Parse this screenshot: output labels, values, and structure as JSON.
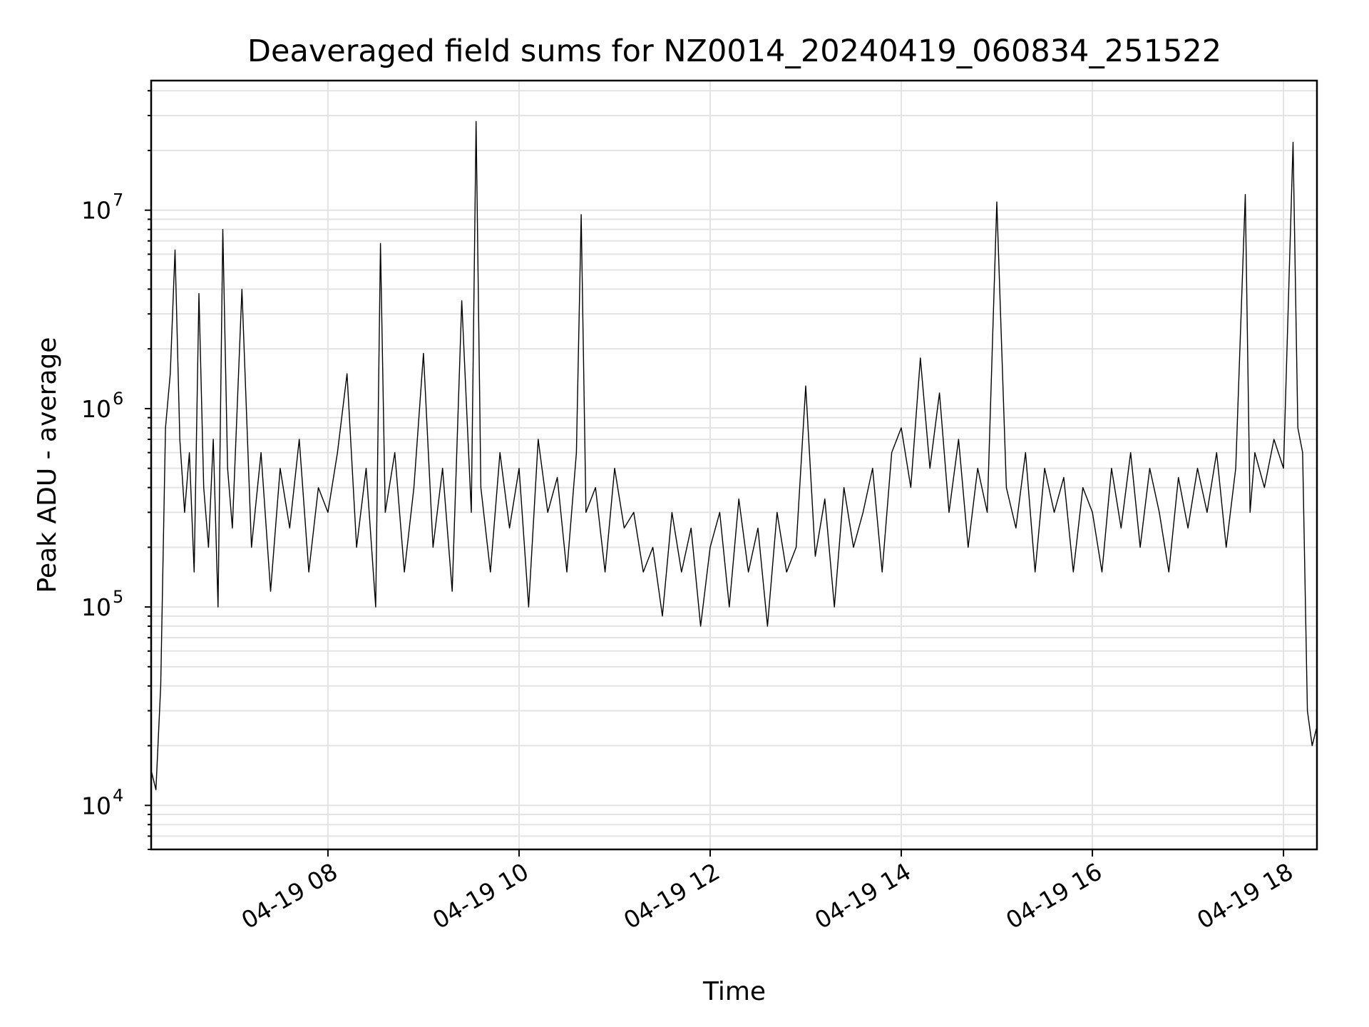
{
  "chart_data": {
    "type": "line",
    "title": "Deaveraged field sums for NZ0014_20240419_060834_251522",
    "xlabel": "Time",
    "ylabel": "Peak ADU - average",
    "yscale": "log",
    "grid": true,
    "x_tick_labels": [
      "04-19 08",
      "04-19 10",
      "04-19 12",
      "04-19 14",
      "04-19 16",
      "04-19 18"
    ],
    "x_ticks_hours": [
      8,
      10,
      12,
      14,
      16,
      18
    ],
    "xlim_hours": [
      6.15,
      18.35
    ],
    "y_ticks": [
      {
        "base": "10",
        "exp": "4",
        "value": 10000
      },
      {
        "base": "10",
        "exp": "5",
        "value": 100000
      },
      {
        "base": "10",
        "exp": "6",
        "value": 1000000
      },
      {
        "base": "10",
        "exp": "7",
        "value": 10000000
      }
    ],
    "ylim": [
      6000,
      45000000
    ],
    "series": [
      {
        "color": "#000000",
        "x_hours": [
          6.15,
          6.2,
          6.25,
          6.3,
          6.35,
          6.4,
          6.45,
          6.5,
          6.55,
          6.6,
          6.65,
          6.7,
          6.75,
          6.8,
          6.85,
          6.9,
          6.95,
          7.0,
          7.1,
          7.2,
          7.3,
          7.4,
          7.5,
          7.6,
          7.7,
          7.8,
          7.9,
          8.0,
          8.1,
          8.2,
          8.3,
          8.4,
          8.5,
          8.55,
          8.6,
          8.7,
          8.8,
          8.9,
          9.0,
          9.1,
          9.2,
          9.3,
          9.4,
          9.5,
          9.55,
          9.6,
          9.7,
          9.8,
          9.9,
          10.0,
          10.1,
          10.2,
          10.3,
          10.4,
          10.5,
          10.6,
          10.65,
          10.7,
          10.8,
          10.9,
          11.0,
          11.1,
          11.2,
          11.3,
          11.4,
          11.5,
          11.6,
          11.7,
          11.8,
          11.9,
          12.0,
          12.1,
          12.2,
          12.3,
          12.4,
          12.5,
          12.6,
          12.7,
          12.8,
          12.9,
          13.0,
          13.1,
          13.2,
          13.3,
          13.4,
          13.5,
          13.6,
          13.7,
          13.8,
          13.9,
          14.0,
          14.1,
          14.2,
          14.3,
          14.4,
          14.5,
          14.6,
          14.7,
          14.8,
          14.9,
          15.0,
          15.1,
          15.2,
          15.3,
          15.4,
          15.5,
          15.6,
          15.7,
          15.8,
          15.9,
          16.0,
          16.1,
          16.2,
          16.3,
          16.4,
          16.5,
          16.6,
          16.7,
          16.8,
          16.9,
          17.0,
          17.1,
          17.2,
          17.3,
          17.4,
          17.5,
          17.6,
          17.65,
          17.7,
          17.8,
          17.9,
          18.0,
          18.1,
          18.15,
          18.2,
          18.25,
          18.3,
          18.35
        ],
        "values": [
          15000,
          12000,
          40000,
          800000,
          1500000,
          6300000,
          700000,
          300000,
          600000,
          150000,
          3800000,
          400000,
          200000,
          700000,
          100000,
          8000000,
          500000,
          250000,
          4000000,
          200000,
          600000,
          120000,
          500000,
          250000,
          700000,
          150000,
          400000,
          300000,
          600000,
          1500000,
          200000,
          500000,
          100000,
          6800000,
          300000,
          600000,
          150000,
          400000,
          1900000,
          200000,
          500000,
          120000,
          3500000,
          300000,
          28000000,
          400000,
          150000,
          600000,
          250000,
          500000,
          100000,
          700000,
          300000,
          450000,
          150000,
          600000,
          9500000,
          300000,
          400000,
          150000,
          500000,
          250000,
          300000,
          150000,
          200000,
          90000,
          300000,
          150000,
          250000,
          80000,
          200000,
          300000,
          100000,
          350000,
          150000,
          250000,
          80000,
          300000,
          150000,
          200000,
          1300000,
          180000,
          350000,
          100000,
          400000,
          200000,
          300000,
          500000,
          150000,
          600000,
          800000,
          400000,
          1800000,
          500000,
          1200000,
          300000,
          700000,
          200000,
          500000,
          300000,
          11000000,
          400000,
          250000,
          600000,
          150000,
          500000,
          300000,
          450000,
          150000,
          400000,
          300000,
          150000,
          500000,
          250000,
          600000,
          200000,
          500000,
          300000,
          150000,
          450000,
          250000,
          500000,
          300000,
          600000,
          200000,
          500000,
          12000000,
          300000,
          600000,
          400000,
          700000,
          500000,
          22000000,
          800000,
          600000,
          30000,
          20000,
          25000
        ]
      }
    ]
  }
}
